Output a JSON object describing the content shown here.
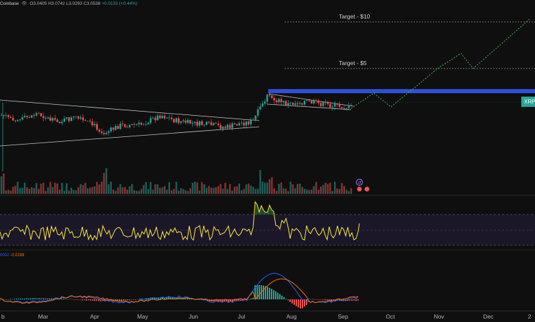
{
  "header": {
    "exchange": "Coinbase",
    "eye_icon": "eye-icon",
    "ohlc": "O3.0405 H3.0742 L3.0293 C3.0538",
    "change": "+0.0133 (+0.44%)"
  },
  "macd_legend": {
    "value_1": "0002",
    "value_2": "-0.0289"
  },
  "price_tag": "XRP",
  "targets": {
    "t10": "Target - $10",
    "t5": "Target - $5"
  },
  "colors": {
    "background": "#0f0f0f",
    "up": "#26a69a",
    "down": "#ef5350",
    "resistance": "#2f4fd6",
    "projection": "#4caf50",
    "rsi": "#ffeb3b",
    "macd": "#2962ff",
    "signal": "#ff6d00"
  },
  "chart_data": {
    "type": "candlestick",
    "x_tick_labels": [
      "b",
      "Mar",
      "Apr",
      "May",
      "Jun",
      "Jul",
      "Aug",
      "Sep",
      "Oct",
      "Nov",
      "Dec",
      "2"
    ],
    "targets": [
      {
        "label": "Target - $10",
        "value": 10
      },
      {
        "label": "Target - $5",
        "value": 5
      }
    ],
    "ohlc_last": {
      "open": 3.0405,
      "high": 3.0742,
      "low": 3.0293,
      "close": 3.0538,
      "change": 0.0133,
      "change_pct": 0.44
    },
    "price_panel": {
      "grid": false,
      "candles_monthly_close_path": [
        {
          "x": "Feb",
          "close": 2.6
        },
        {
          "x": "Mar",
          "close": 2.3
        },
        {
          "x": "Apr",
          "close": 2.1
        },
        {
          "x": "May",
          "close": 2.25
        },
        {
          "x": "Jun",
          "close": 2.2
        },
        {
          "x": "Jul",
          "close": 2.6
        },
        {
          "x": "Aug",
          "close": 3.0
        },
        {
          "x": "Sep",
          "close": 3.05
        }
      ],
      "projection_path": [
        {
          "x": "Sep",
          "value": 3.05
        },
        {
          "x": "late Sep",
          "value": 3.6
        },
        {
          "x": "Oct",
          "value": 2.8
        },
        {
          "x": "Oct",
          "value": 3.6
        },
        {
          "x": "Nov",
          "value": 5.4
        },
        {
          "x": "Nov",
          "value": 6.8
        },
        {
          "x": "late Nov",
          "value": 5.7
        },
        {
          "x": "Dec",
          "value": 10
        }
      ]
    },
    "rsi_panel": {
      "upper_band": 70,
      "lower_band": 30,
      "mid": 50
    },
    "macd_panel": {
      "macd_label": "0002",
      "signal_label": "-0.0289"
    }
  }
}
